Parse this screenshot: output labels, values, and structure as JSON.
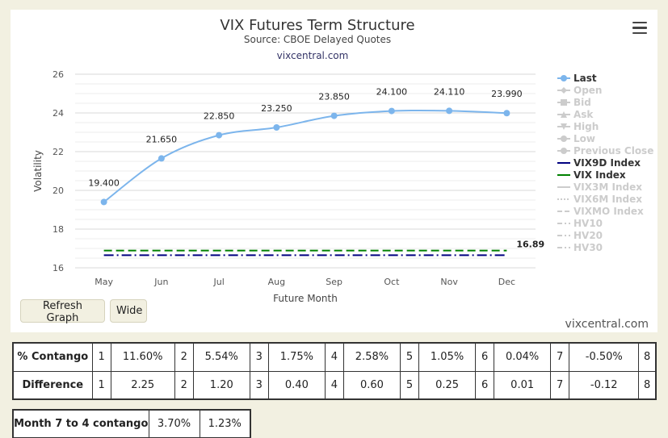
{
  "chart_data": {
    "type": "line",
    "title": "VIX Futures Term Structure",
    "subtitle": "Source: CBOE Delayed Quotes",
    "subtitle2": "vixcentral.com",
    "xlabel": "Future Month",
    "ylabel": "Volatility",
    "categories": [
      "May",
      "Jun",
      "Jul",
      "Aug",
      "Sep",
      "Oct",
      "Nov",
      "Dec"
    ],
    "ylim": [
      16,
      26
    ],
    "yticks": [
      16,
      18,
      20,
      22,
      24,
      26
    ],
    "grid": true,
    "legend_placement": "right",
    "series": [
      {
        "name": "Last",
        "values": [
          19.4,
          21.65,
          22.85,
          23.25,
          23.85,
          24.1,
          24.11,
          23.99
        ],
        "labels": [
          "19.400",
          "21.650",
          "22.850",
          "23.250",
          "23.850",
          "24.100",
          "24.110",
          "23.990"
        ],
        "color": "#7cb5ec"
      },
      {
        "name": "VIX9D Index",
        "value": 16.65,
        "color": "#000080"
      },
      {
        "name": "VIX Index",
        "value": 16.89,
        "value_label": "16.89",
        "color": "#008000"
      }
    ]
  },
  "legend": [
    {
      "label": "Last",
      "color": "#7cb5ec",
      "marker": "circle",
      "active": true
    },
    {
      "label": "Open",
      "color": "#cccccc",
      "marker": "diamond",
      "active": false
    },
    {
      "label": "Bid",
      "color": "#cccccc",
      "marker": "square",
      "active": false
    },
    {
      "label": "Ask",
      "color": "#cccccc",
      "marker": "triangle",
      "active": false
    },
    {
      "label": "High",
      "color": "#cccccc",
      "marker": "triangle-down",
      "active": false
    },
    {
      "label": "Low",
      "color": "#cccccc",
      "marker": "circle",
      "active": false
    },
    {
      "label": "Previous Close",
      "color": "#cccccc",
      "marker": "circle",
      "active": false
    },
    {
      "label": "VIX9D Index",
      "color": "#000080",
      "marker": "line",
      "active": true
    },
    {
      "label": "VIX Index",
      "color": "#008000",
      "marker": "line",
      "active": true
    },
    {
      "label": "VIX3M Index",
      "color": "#cccccc",
      "marker": "line",
      "active": false
    },
    {
      "label": "VIX6M Index",
      "color": "#cccccc",
      "marker": "dot",
      "active": false
    },
    {
      "label": "VIXMO Index",
      "color": "#cccccc",
      "marker": "dash",
      "active": false
    },
    {
      "label": "HV10",
      "color": "#cccccc",
      "marker": "dashdot",
      "active": false
    },
    {
      "label": "HV20",
      "color": "#cccccc",
      "marker": "dashdot",
      "active": false
    },
    {
      "label": "HV30",
      "color": "#cccccc",
      "marker": "dashdot",
      "active": false
    }
  ],
  "buttons": {
    "refresh": "Refresh Graph",
    "wide": "Wide"
  },
  "watermark": "vixcentral.com",
  "contango_table": {
    "rows": [
      {
        "label": "% Contango",
        "cells": [
          "1",
          "11.60%",
          "2",
          "5.54%",
          "3",
          "1.75%",
          "4",
          "2.58%",
          "5",
          "1.05%",
          "6",
          "0.04%",
          "7",
          "-0.50%",
          "8"
        ]
      },
      {
        "label": "Difference",
        "cells": [
          "1",
          "2.25",
          "2",
          "1.20",
          "3",
          "0.40",
          "4",
          "0.60",
          "5",
          "0.25",
          "6",
          "0.01",
          "7",
          "-0.12",
          "8"
        ]
      }
    ]
  },
  "summary_table": {
    "label": "Month 7 to 4 contango",
    "cells": [
      "3.70%",
      "1.23%"
    ]
  }
}
